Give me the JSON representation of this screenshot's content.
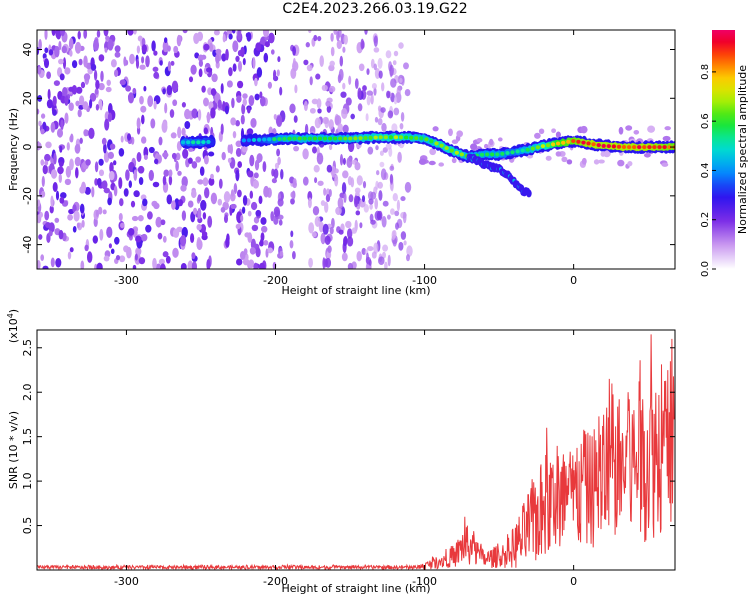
{
  "title": "C2E4.2023.266.03.19.G22",
  "chart_data": [
    {
      "type": "heatmap",
      "xlabel": "Height of straight line (km)",
      "ylabel": "Frequency (Hz)",
      "xlim": [
        -360,
        68
      ],
      "ylim": [
        -50,
        48
      ],
      "xticks": [
        -300,
        -200,
        -100,
        0
      ],
      "yticks": [
        -40,
        -20,
        0,
        20,
        40
      ],
      "colorbar": {
        "label": "Normalized spectral amplitude",
        "range": [
          0.0,
          0.97
        ],
        "ticks": [
          0.0,
          0.2,
          0.4,
          0.6,
          0.8
        ],
        "tick_labels": [
          "0.0",
          "0.2",
          "0.4",
          "0.6",
          "0.8"
        ],
        "colormap": "rainbow (white-violet-blue-cyan-green-yellow-red-magenta)"
      },
      "features": {
        "noise_region_km": [
          -360,
          -110
        ],
        "noise_blank_x_km": [
          [
            -186,
            -180
          ],
          [
            -195,
            -190
          ]
        ],
        "signal_track": [
          {
            "x": -262,
            "freq": 2,
            "amp": 0.45
          },
          {
            "x": -250,
            "freq": 2,
            "amp": 0.45
          },
          {
            "x": -230,
            "freq": 2.5,
            "amp": 0.3
          },
          {
            "x": -210,
            "freq": 3,
            "amp": 0.4
          },
          {
            "x": -190,
            "freq": 3.5,
            "amp": 0.55
          },
          {
            "x": -170,
            "freq": 3.5,
            "amp": 0.55
          },
          {
            "x": -150,
            "freq": 3.5,
            "amp": 0.55
          },
          {
            "x": -130,
            "freq": 4,
            "amp": 0.6
          },
          {
            "x": -115,
            "freq": 4,
            "amp": 0.6
          },
          {
            "x": -100,
            "freq": 3.5,
            "amp": 0.55
          },
          {
            "x": -90,
            "freq": 1,
            "amp": 0.6
          },
          {
            "x": -80,
            "freq": -2,
            "amp": 0.6
          },
          {
            "x": -70,
            "freq": -4,
            "amp": 0.55
          },
          {
            "x": -60,
            "freq": -3,
            "amp": 0.5
          },
          {
            "x": -50,
            "freq": -3,
            "amp": 0.5
          },
          {
            "x": -40,
            "freq": -2,
            "amp": 0.45
          },
          {
            "x": -30,
            "freq": -1,
            "amp": 0.55
          },
          {
            "x": -20,
            "freq": 0.5,
            "amp": 0.6
          },
          {
            "x": -10,
            "freq": 1.5,
            "amp": 0.75
          },
          {
            "x": 0,
            "freq": 2.5,
            "amp": 0.8
          },
          {
            "x": 10,
            "freq": 1.5,
            "amp": 0.85
          },
          {
            "x": 20,
            "freq": 0.5,
            "amp": 0.85
          },
          {
            "x": 35,
            "freq": 0,
            "amp": 0.85
          },
          {
            "x": 50,
            "freq": 0,
            "amp": 0.85
          },
          {
            "x": 68,
            "freq": 0,
            "amp": 0.8
          }
        ],
        "branch_track": [
          {
            "x": -70,
            "freq": -4
          },
          {
            "x": -60,
            "freq": -7
          },
          {
            "x": -50,
            "freq": -9
          },
          {
            "x": -42,
            "freq": -13
          },
          {
            "x": -36,
            "freq": -17
          },
          {
            "x": -30,
            "freq": -19
          }
        ]
      }
    },
    {
      "type": "line",
      "xlabel": "Height of straight line (km)",
      "ylabel": "SNR (10 * v/v)",
      "y_multiplier_label": "(x10",
      "y_multiplier_exp": "4",
      "y_multiplier_close": ")",
      "xlim": [
        -360,
        68
      ],
      "ylim": [
        0.0,
        2.7
      ],
      "xticks": [
        -300,
        -200,
        -100,
        0
      ],
      "yticks": [
        0.5,
        1.0,
        1.5,
        2.0,
        2.5
      ],
      "series_color": "#e8393c",
      "envelope": [
        {
          "x": -360,
          "base": 0.03,
          "amp": 0.02
        },
        {
          "x": -105,
          "base": 0.03,
          "amp": 0.02
        },
        {
          "x": -95,
          "base": 0.07,
          "amp": 0.06
        },
        {
          "x": -80,
          "base": 0.15,
          "amp": 0.12
        },
        {
          "x": -73,
          "base": 0.3,
          "amp": 0.25
        },
        {
          "x": -60,
          "base": 0.12,
          "amp": 0.1
        },
        {
          "x": -45,
          "base": 0.17,
          "amp": 0.15
        },
        {
          "x": -35,
          "base": 0.35,
          "amp": 0.35
        },
        {
          "x": -25,
          "base": 0.6,
          "amp": 0.55
        },
        {
          "x": -15,
          "base": 0.75,
          "amp": 0.6
        },
        {
          "x": 0,
          "base": 0.8,
          "amp": 0.6
        },
        {
          "x": 15,
          "base": 0.95,
          "amp": 0.7
        },
        {
          "x": 30,
          "base": 1.15,
          "amp": 0.8
        },
        {
          "x": 45,
          "base": 1.2,
          "amp": 0.9
        },
        {
          "x": 55,
          "base": 1.35,
          "amp": 1.0
        },
        {
          "x": 68,
          "base": 1.4,
          "amp": 0.9
        }
      ],
      "notable_peaks": [
        {
          "x": -73,
          "y": 0.6
        },
        {
          "x": -18,
          "y": 1.6
        },
        {
          "x": 24,
          "y": 2.15
        },
        {
          "x": 52,
          "y": 2.65
        },
        {
          "x": 66,
          "y": 2.6
        }
      ]
    }
  ]
}
